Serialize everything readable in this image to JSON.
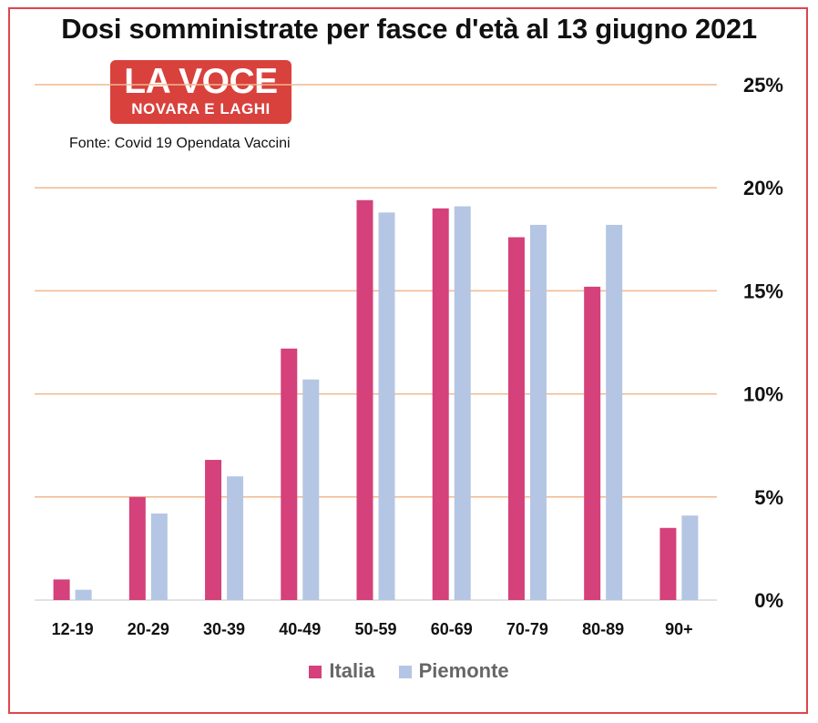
{
  "header": {
    "title": "Dosi somministrate per fasce d'età al 13 giugno 2021",
    "logo_main": "LA VOCE",
    "logo_sub": "NOVARA E LAGHI",
    "source": "Fonte: Covid 19 Opendata Vaccini"
  },
  "colors": {
    "italia": "#d4417b",
    "piemonte": "#b4c6e4",
    "gridline": "#f0b88e",
    "logo_bg": "#d9413d",
    "frame": "#e0454a"
  },
  "chart_data": {
    "type": "bar",
    "title": "Dosi somministrate per fasce d'età al 13 giugno 2021",
    "categories": [
      "12-19",
      "20-29",
      "30-39",
      "40-49",
      "50-59",
      "60-69",
      "70-79",
      "80-89",
      "90+"
    ],
    "series": [
      {
        "name": "Italia",
        "values": [
          1.0,
          5.0,
          6.8,
          12.2,
          19.4,
          19.0,
          17.6,
          15.2,
          3.5
        ]
      },
      {
        "name": "Piemonte",
        "values": [
          0.5,
          4.2,
          6.0,
          10.7,
          18.8,
          19.1,
          18.2,
          18.2,
          4.1
        ]
      }
    ],
    "y_ticks": [
      "0%",
      "5%",
      "10%",
      "15%",
      "20%",
      "25%"
    ],
    "ylim": [
      0,
      25
    ],
    "y_axis_side": "right",
    "grid": true,
    "legend_position": "bottom"
  }
}
